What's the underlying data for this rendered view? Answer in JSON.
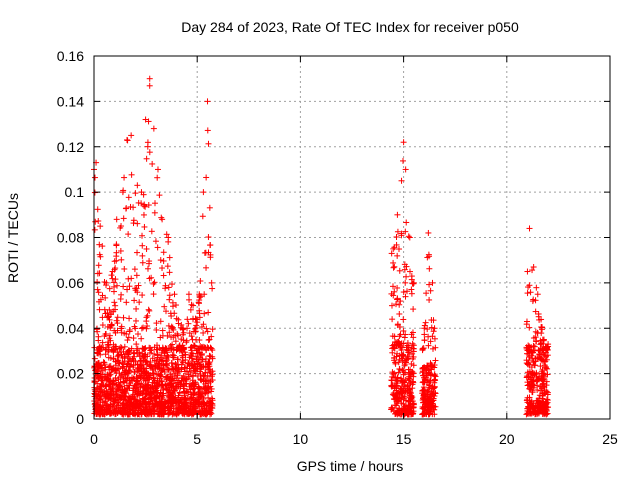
{
  "chart_data": {
    "type": "scatter",
    "title": "Day 284 of 2023, Rate Of TEC Index for receiver p050",
    "xlabel": "GPS time / hours",
    "ylabel": "ROTI / TECUs",
    "xlim": [
      0,
      25
    ],
    "ylim": [
      0,
      0.16
    ],
    "x_ticks": [
      "0",
      "5",
      "10",
      "15",
      "20",
      "25"
    ],
    "y_ticks": [
      "0",
      "0.02",
      "0.04",
      "0.06",
      "0.08",
      "0.1",
      "0.12",
      "0.14",
      "0.16"
    ],
    "grid": true,
    "marker": "plus",
    "color": "#ff0000",
    "clusters": [
      {
        "x_range": [
          0.0,
          5.75
        ],
        "typical_max": 0.03,
        "upper_envelope": [
          [
            0.0,
            0.11
          ],
          [
            0.1,
            0.113
          ],
          [
            0.3,
            0.085
          ],
          [
            0.6,
            0.06
          ],
          [
            0.9,
            0.065
          ],
          [
            1.1,
            0.088
          ],
          [
            1.4,
            0.1
          ],
          [
            1.6,
            0.123
          ],
          [
            1.8,
            0.125
          ],
          [
            2.1,
            0.103
          ],
          [
            2.3,
            0.1
          ],
          [
            2.5,
            0.132
          ],
          [
            2.7,
            0.15
          ],
          [
            2.9,
            0.128
          ],
          [
            3.1,
            0.11
          ],
          [
            3.3,
            0.088
          ],
          [
            3.6,
            0.08
          ],
          [
            3.9,
            0.055
          ],
          [
            4.3,
            0.04
          ],
          [
            4.6,
            0.055
          ],
          [
            4.8,
            0.05
          ],
          [
            5.1,
            0.055
          ],
          [
            5.3,
            0.1
          ],
          [
            5.5,
            0.14
          ],
          [
            5.7,
            0.06
          ]
        ]
      },
      {
        "x_range": [
          14.4,
          15.5
        ],
        "typical_max": 0.032,
        "upper_envelope": [
          [
            14.5,
            0.075
          ],
          [
            14.7,
            0.09
          ],
          [
            14.9,
            0.105
          ],
          [
            15.0,
            0.122
          ],
          [
            15.1,
            0.11
          ],
          [
            15.3,
            0.08
          ],
          [
            15.5,
            0.06
          ]
        ]
      },
      {
        "x_range": [
          15.9,
          16.55
        ],
        "typical_max": 0.022,
        "upper_envelope": [
          [
            16.0,
            0.04
          ],
          [
            16.2,
            0.082
          ],
          [
            16.4,
            0.06
          ],
          [
            16.5,
            0.04
          ]
        ]
      },
      {
        "x_range": [
          20.95,
          22.0
        ],
        "typical_max": 0.03,
        "upper_envelope": [
          [
            21.0,
            0.065
          ],
          [
            21.1,
            0.084
          ],
          [
            21.3,
            0.067
          ],
          [
            21.5,
            0.055
          ],
          [
            21.8,
            0.035
          ],
          [
            22.0,
            0.033
          ]
        ]
      }
    ]
  }
}
